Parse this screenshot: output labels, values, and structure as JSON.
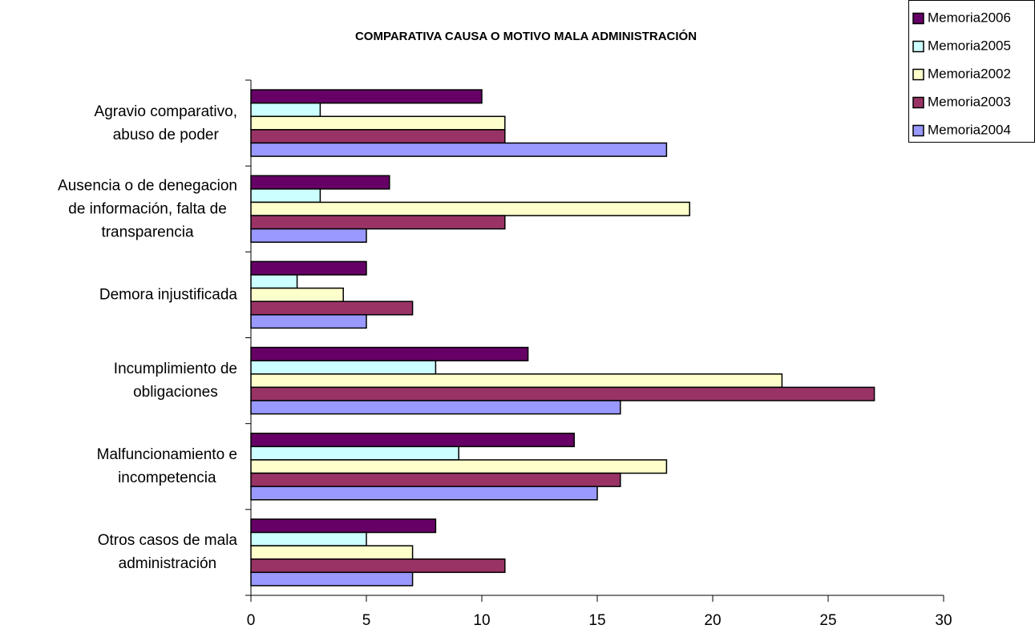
{
  "chart_data": {
    "type": "hbar",
    "title": "COMPARATIVA CAUSA O MOTIVO MALA ADMINISTRACIÓN",
    "categories": [
      "Agravio comparativo,\nabuso de poder",
      "Ausencia o de denegacion\nde información, falta de\ntransparencia",
      "Demora injustificada",
      "Incumplimiento de\nobligaciones",
      "Malfuncionamiento e\nincompetencia",
      "Otros casos de mala\nadministración"
    ],
    "series": [
      {
        "name": "Memoria2006",
        "color": "#660066",
        "values": [
          10,
          6,
          5,
          12,
          14,
          8
        ]
      },
      {
        "name": "Memoria2005",
        "color": "#ccffff",
        "values": [
          3,
          3,
          2,
          8,
          9,
          5
        ]
      },
      {
        "name": "Memoria2002",
        "color": "#ffffcc",
        "values": [
          11,
          19,
          4,
          23,
          18,
          7
        ]
      },
      {
        "name": "Memoria2003",
        "color": "#993366",
        "values": [
          11,
          11,
          7,
          27,
          16,
          11
        ]
      },
      {
        "name": "Memoria2004",
        "color": "#9999ff",
        "values": [
          18,
          5,
          5,
          16,
          15,
          7
        ]
      }
    ],
    "xlim": [
      0,
      30
    ],
    "xticks": [
      0,
      5,
      10,
      15,
      20,
      25,
      30
    ],
    "legend": "top-right"
  }
}
